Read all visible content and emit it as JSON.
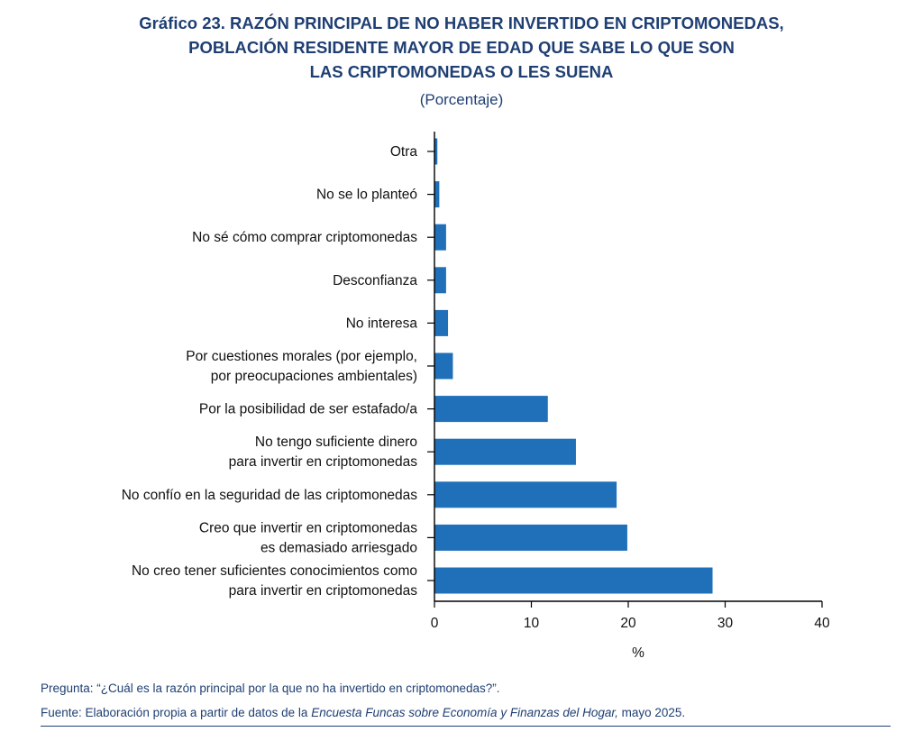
{
  "chart_data": {
    "type": "bar",
    "orientation": "horizontal",
    "title_lines": [
      "Gráfico 23. RAZÓN PRINCIPAL DE NO HABER INVERTIDO EN CRIPTOMONEDAS,",
      "POBLACIÓN RESIDENTE MAYOR DE EDAD QUE SABE LO QUE SON",
      "LAS CRIPTOMONEDAS O LES SUENA"
    ],
    "subtitle": "(Porcentaje)",
    "xlabel": "%",
    "xlim": [
      0,
      40
    ],
    "xticks": [
      "0",
      "10",
      "20",
      "30",
      "40"
    ],
    "grid": false,
    "bar_color": "#1f6fb9",
    "categories": [
      [
        "Otra"
      ],
      [
        "No se lo planteó"
      ],
      [
        "No sé cómo comprar criptomonedas"
      ],
      [
        "Desconfianza"
      ],
      [
        "No interesa"
      ],
      [
        "Por cuestiones morales (por ejemplo,",
        "por preocupaciones ambientales)"
      ],
      [
        "Por la posibilidad de ser estafado/a"
      ],
      [
        "No tengo suficiente dinero",
        "para invertir en criptomonedas"
      ],
      [
        "No confío en la seguridad de las criptomonedas"
      ],
      [
        "Creo que invertir en criptomonedas",
        "es demasiado arriesgado"
      ],
      [
        "No creo tener suficientes conocimientos como",
        "para invertir en criptomonedas"
      ]
    ],
    "values": [
      0.3,
      0.5,
      1.2,
      1.2,
      1.4,
      1.9,
      11.7,
      14.6,
      18.8,
      19.9,
      28.7
    ]
  },
  "footnotes": {
    "question": "Pregunta: “¿Cuál es la razón principal por la que no ha invertido en criptomonedas?”.",
    "source_prefix": "Fuente: Elaboración propia a partir de datos de la ",
    "source_italic": "Encuesta Funcas sobre Economía y Finanzas del Hogar,",
    "source_suffix": " mayo 2025."
  }
}
